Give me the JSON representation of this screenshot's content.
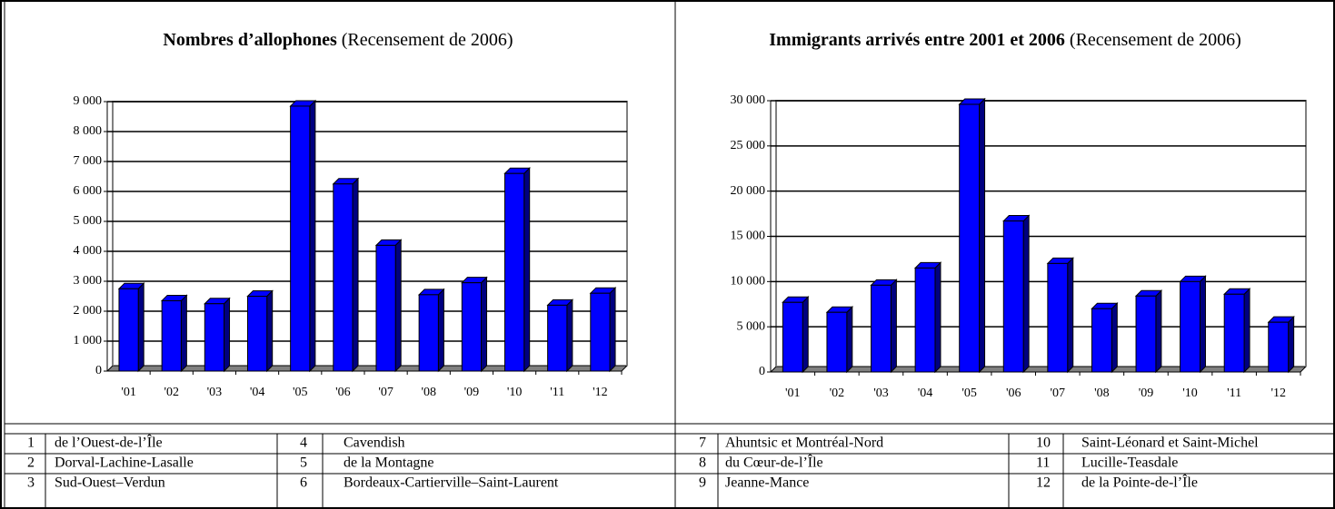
{
  "chart_data": [
    {
      "type": "bar",
      "title": "Nombres d’allophones",
      "subtitle": "(Recensement de 2006)",
      "categories": [
        "'01",
        "'02",
        "'03",
        "'04",
        "'05",
        "'06",
        "'07",
        "'08",
        "'09",
        "'10",
        "'11",
        "'12"
      ],
      "values": [
        2750,
        2350,
        2250,
        2500,
        8850,
        6250,
        4200,
        2550,
        2950,
        6600,
        2200,
        2600
      ],
      "color": "#0000ff",
      "ylim": [
        0,
        9000
      ],
      "yticks": [
        0,
        {
          "value": 1000,
          "label": "1 000"
        },
        {
          "value": 2000,
          "label": "2 000"
        },
        {
          "value": 3000,
          "label": "3 000"
        },
        {
          "value": 4000,
          "label": "4 000"
        },
        {
          "value": 5000,
          "label": "5 000"
        },
        {
          "value": 6000,
          "label": "6 000"
        },
        {
          "value": 7000,
          "label": "7 000"
        },
        {
          "value": 8000,
          "label": "8 000"
        },
        {
          "value": 9000,
          "label": "9 000"
        }
      ],
      "grid": true
    },
    {
      "type": "bar",
      "title": "Immigrants arrivés entre 2001 et 2006",
      "subtitle": "(Recensement de 2006)",
      "categories": [
        "'01",
        "'02",
        "'03",
        "'04",
        "'05",
        "'06",
        "'07",
        "'08",
        "'09",
        "'10",
        "'11",
        "'12"
      ],
      "values": [
        7700,
        6600,
        9600,
        11500,
        29600,
        16700,
        12000,
        7000,
        8400,
        10000,
        8600,
        5500
      ],
      "color": "#0000ff",
      "ylim": [
        0,
        30000
      ],
      "yticks": [
        0,
        {
          "value": 5000,
          "label": "5 000"
        },
        {
          "value": 10000,
          "label": "10 000"
        },
        {
          "value": 15000,
          "label": "15 000"
        },
        {
          "value": 20000,
          "label": "20 000"
        },
        {
          "value": 25000,
          "label": "25 000"
        },
        {
          "value": 30000,
          "label": "30 000"
        }
      ],
      "grid": true
    }
  ],
  "table": {
    "rows": [
      [
        "1",
        "de l’Ouest-de-l’Île",
        "4",
        "Cavendish",
        "7",
        "Ahuntsic et Montréal-Nord",
        "10",
        "Saint-Léonard et Saint-Michel"
      ],
      [
        "2",
        "Dorval-Lachine-Lasalle",
        "5",
        "de la Montagne",
        "8",
        "du Cœur-de-l’Île",
        "11",
        "Lucille-Teasdale"
      ],
      [
        "3",
        "Sud-Ouest–Verdun",
        "6",
        "Bordeaux-Cartierville–Saint-Laurent",
        "9",
        "Jeanne-Mance",
        "12",
        "de la Pointe-de-l’Île"
      ]
    ]
  }
}
